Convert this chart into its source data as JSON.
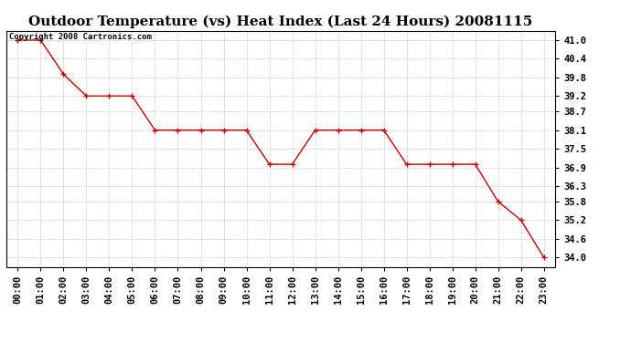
{
  "title": "Outdoor Temperature (vs) Heat Index (Last 24 Hours) 20081115",
  "copyright_text": "Copyright 2008 Cartronics.com",
  "x_labels": [
    "00:00",
    "01:00",
    "02:00",
    "03:00",
    "04:00",
    "05:00",
    "06:00",
    "07:00",
    "08:00",
    "09:00",
    "10:00",
    "11:00",
    "12:00",
    "13:00",
    "14:00",
    "15:00",
    "16:00",
    "17:00",
    "18:00",
    "19:00",
    "20:00",
    "21:00",
    "22:00",
    "23:00"
  ],
  "y_values": [
    41.0,
    41.0,
    39.9,
    39.2,
    39.2,
    39.2,
    38.1,
    38.1,
    38.1,
    38.1,
    38.1,
    37.0,
    37.0,
    38.1,
    38.1,
    38.1,
    38.1,
    37.0,
    37.0,
    37.0,
    37.0,
    35.8,
    35.2,
    34.0
  ],
  "line_color": "#cc0000",
  "marker": "+",
  "marker_size": 4,
  "marker_linewidth": 1.0,
  "line_width": 1.0,
  "background_color": "#ffffff",
  "grid_color": "#cccccc",
  "ylim_min": 33.7,
  "ylim_max": 41.3,
  "yticks": [
    41.0,
    40.4,
    39.8,
    39.2,
    38.7,
    38.1,
    37.5,
    36.9,
    36.3,
    35.8,
    35.2,
    34.6,
    34.0
  ],
  "title_fontsize": 11,
  "tick_fontsize": 7.5,
  "copyright_fontsize": 6.5
}
